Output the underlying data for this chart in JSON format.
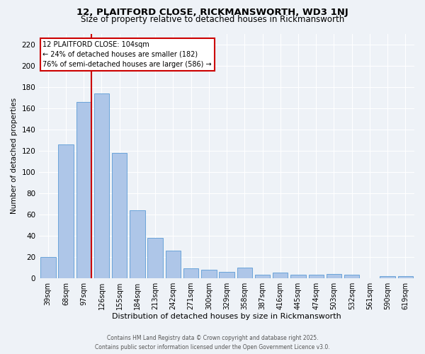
{
  "title_line1": "12, PLAITFORD CLOSE, RICKMANSWORTH, WD3 1NJ",
  "title_line2": "Size of property relative to detached houses in Rickmansworth",
  "xlabel": "Distribution of detached houses by size in Rickmansworth",
  "ylabel": "Number of detached properties",
  "categories": [
    "39sqm",
    "68sqm",
    "97sqm",
    "126sqm",
    "155sqm",
    "184sqm",
    "213sqm",
    "242sqm",
    "271sqm",
    "300sqm",
    "329sqm",
    "358sqm",
    "387sqm",
    "416sqm",
    "445sqm",
    "474sqm",
    "503sqm",
    "532sqm",
    "561sqm",
    "590sqm",
    "619sqm"
  ],
  "values": [
    20,
    126,
    166,
    174,
    118,
    64,
    38,
    26,
    9,
    8,
    6,
    10,
    3,
    5,
    3,
    3,
    4,
    3,
    0,
    2,
    2
  ],
  "bar_color": "#aec6e8",
  "bar_edge_color": "#5b9bd5",
  "property_line_index": 2,
  "annotation_text": "12 PLAITFORD CLOSE: 104sqm\n← 24% of detached houses are smaller (182)\n76% of semi-detached houses are larger (586) →",
  "annotation_box_color": "#ffffff",
  "annotation_box_edge": "#cc0000",
  "vline_color": "#cc0000",
  "footer_line1": "Contains HM Land Registry data © Crown copyright and database right 2025.",
  "footer_line2": "Contains public sector information licensed under the Open Government Licence v3.0.",
  "ylim": [
    0,
    230
  ],
  "yticks": [
    0,
    20,
    40,
    60,
    80,
    100,
    120,
    140,
    160,
    180,
    200,
    220
  ],
  "fig_width": 6.0,
  "fig_height": 5.0,
  "dpi": 100,
  "background_color": "#eef2f7",
  "grid_color": "#ffffff",
  "title1_fontsize": 9.5,
  "title2_fontsize": 8.5,
  "bar_fontsize": 7,
  "xlabel_fontsize": 8,
  "ylabel_fontsize": 7.5,
  "footer_fontsize": 5.5,
  "annotation_fontsize": 7
}
